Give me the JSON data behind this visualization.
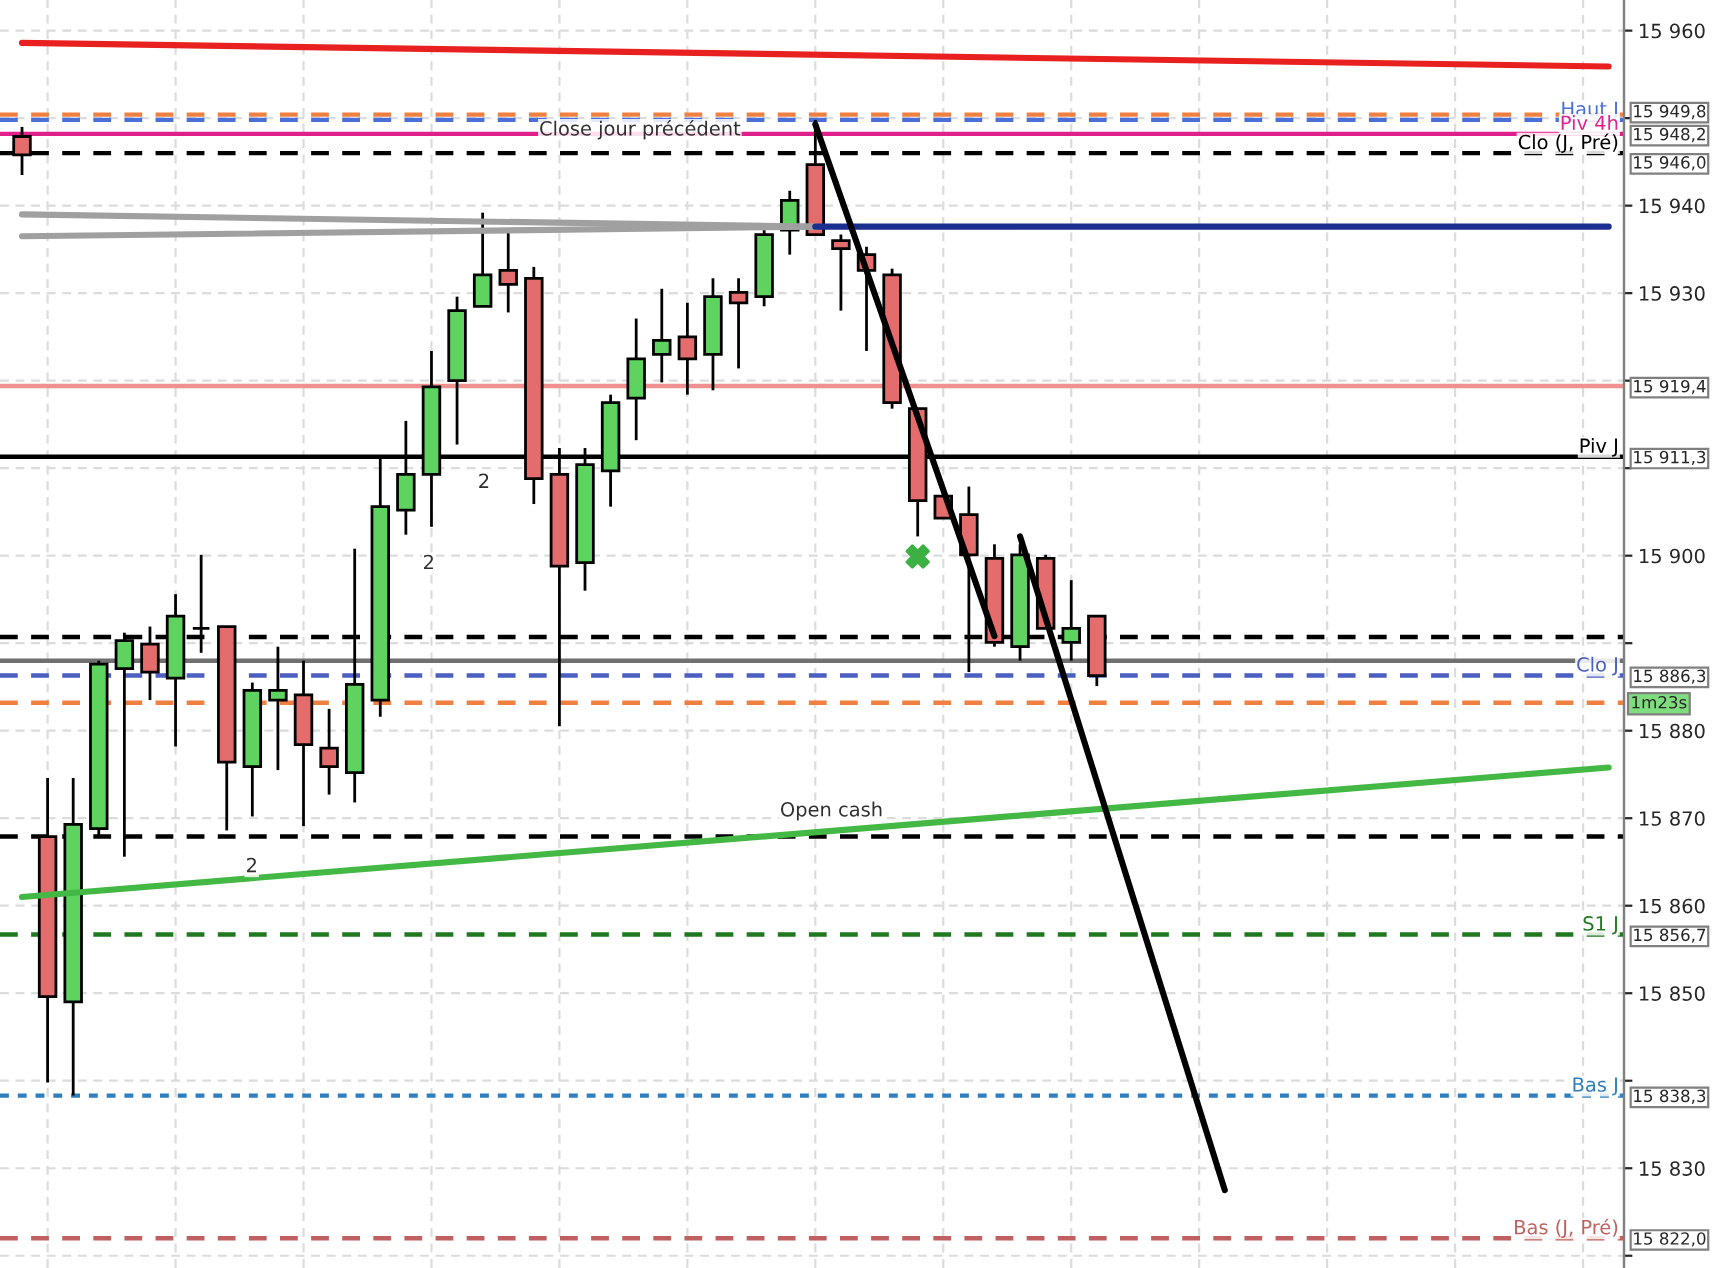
{
  "chart_data": {
    "type": "candlestick",
    "categories": [
      null,
      null,
      null,
      null,
      null,
      null,
      null,
      null,
      null,
      null,
      null,
      null,
      null,
      null,
      null,
      null,
      null,
      null,
      null,
      null,
      null,
      null,
      null,
      null,
      null,
      null,
      null,
      null,
      null,
      null,
      null,
      null,
      null,
      null,
      null,
      null,
      null,
      null,
      null,
      null,
      null,
      null,
      null,
      null,
      null,
      null,
      null,
      null,
      null,
      null,
      null,
      null,
      null,
      null,
      null,
      null,
      null,
      null,
      null,
      null,
      null,
      null,
      null
    ],
    "ohlc": [
      [
        15947.9,
        15949.0,
        15943.5,
        15945.8
      ],
      [
        15867.9,
        15874.6,
        15839.8,
        15849.6
      ],
      [
        15849.0,
        15874.6,
        15838.3,
        15869.3
      ],
      [
        15868.8,
        15888.0,
        15867.9,
        15887.6
      ],
      [
        15887.1,
        15891.2,
        15865.6,
        15890.3
      ],
      [
        15889.9,
        15891.9,
        15883.5,
        15886.7
      ],
      [
        15886.0,
        15895.6,
        15878.2,
        15893.1
      ],
      [
        15891.7,
        15900.1,
        15888.9,
        15891.7
      ],
      [
        15891.9,
        15891.9,
        15868.6,
        15876.4
      ],
      [
        15875.9,
        15885.5,
        15870.2,
        15884.6
      ],
      [
        15883.5,
        15889.6,
        15875.5,
        15884.6
      ],
      [
        15884.1,
        15888.0,
        15869.1,
        15878.4
      ],
      [
        15878.0,
        15882.5,
        15872.7,
        15875.9
      ],
      [
        15875.2,
        15900.8,
        15871.8,
        15885.3
      ],
      [
        15883.5,
        15911.3,
        15881.6,
        15905.6
      ],
      [
        15905.2,
        15915.4,
        15902.4,
        15909.3
      ],
      [
        15909.3,
        15923.4,
        15903.3,
        15919.3
      ],
      [
        15920.0,
        15929.6,
        15912.7,
        15928.0
      ],
      [
        15928.5,
        15939.2,
        15928.5,
        15932.1
      ],
      [
        15932.6,
        15937.2,
        15927.8,
        15931.0
      ],
      [
        15931.7,
        15933.0,
        15905.9,
        15908.8
      ],
      [
        15909.3,
        15912.3,
        15880.5,
        15898.8
      ],
      [
        15899.2,
        15912.3,
        15896.0,
        15910.4
      ],
      [
        15909.7,
        15918.4,
        15905.6,
        15917.5
      ],
      [
        15918.0,
        15927.1,
        15913.2,
        15922.5
      ],
      [
        15923.0,
        15930.5,
        15919.8,
        15924.6
      ],
      [
        15925.0,
        15928.9,
        15918.4,
        15922.5
      ],
      [
        15923.0,
        15931.7,
        15918.9,
        15929.6
      ],
      [
        15930.1,
        15931.7,
        15921.4,
        15928.9
      ],
      [
        15929.6,
        15937.2,
        15928.5,
        15936.7
      ],
      [
        15937.2,
        15941.7,
        15934.4,
        15940.6
      ],
      [
        15944.7,
        15949.8,
        15936.7,
        15936.7
      ],
      [
        15936.0,
        15936.7,
        15928.0,
        15935.1
      ],
      [
        15934.4,
        15935.3,
        15923.4,
        15932.6
      ],
      [
        15932.1,
        15932.8,
        15916.8,
        15917.5
      ],
      [
        15916.8,
        15916.8,
        15902.2,
        15906.3
      ],
      [
        15906.8,
        15907.9,
        15904.3,
        15904.3
      ],
      [
        15904.7,
        15907.9,
        15886.7,
        15900.1
      ],
      [
        15899.7,
        15901.3,
        15889.6,
        15890.1
      ],
      [
        15889.6,
        15901.3,
        15888.0,
        15900.1
      ],
      [
        15899.7,
        15900.1,
        15891.7,
        15891.7
      ],
      [
        15890.1,
        15897.2,
        15888.0,
        15891.7
      ],
      [
        15893.1,
        15893.1,
        15885.1,
        15886.3
      ],
      null,
      null,
      null,
      null,
      null,
      null,
      null,
      null,
      null,
      null,
      null,
      null,
      null,
      null,
      null,
      null,
      null,
      null,
      null,
      null
    ],
    "colors": [
      "#e46c6c",
      "#e46c6c",
      "#5fd35f",
      "#5fd35f",
      "#5fd35f",
      "#e46c6c",
      "#5fd35f",
      "#000000",
      "#e46c6c",
      "#5fd35f",
      "#5fd35f",
      "#e46c6c",
      "#e46c6c",
      "#5fd35f",
      "#5fd35f",
      "#5fd35f",
      "#5fd35f",
      "#5fd35f",
      "#5fd35f",
      "#e46c6c",
      "#e46c6c",
      "#e46c6c",
      "#5fd35f",
      "#5fd35f",
      "#5fd35f",
      "#5fd35f",
      "#e46c6c",
      "#5fd35f",
      "#e46c6c",
      "#5fd35f",
      "#5fd35f",
      "#e46c6c",
      "#e46c6c",
      "#e46c6c",
      "#e46c6c",
      "#e46c6c",
      "#e46c6c",
      "#e46c6c",
      "#e46c6c",
      "#5fd35f",
      "#e46c6c",
      "#5fd35f",
      "#e46c6c",
      null,
      null,
      null,
      null,
      null,
      null,
      null,
      null,
      null,
      null,
      null,
      null,
      null,
      null,
      null,
      null,
      null,
      null,
      null,
      null
    ],
    "series": [
      {
        "type": "line",
        "color": "#e82020",
        "values": [
          15958.6,
          null,
          null,
          null,
          null,
          null,
          null,
          null,
          null,
          null,
          null,
          null,
          null,
          null,
          null,
          null,
          null,
          null,
          null,
          null,
          null,
          null,
          null,
          null,
          null,
          null,
          null,
          null,
          null,
          null,
          null,
          null,
          null,
          null,
          null,
          null,
          null,
          null,
          null,
          null,
          null,
          null,
          null,
          null,
          null,
          null,
          null,
          null,
          null,
          null,
          null,
          null,
          null,
          null,
          null,
          null,
          null,
          null,
          null,
          null,
          null,
          null,
          15955.9
        ]
      },
      {
        "type": "line",
        "color": "#44b844",
        "values": [
          15861.0,
          null,
          null,
          null,
          null,
          null,
          null,
          null,
          null,
          null,
          null,
          null,
          null,
          null,
          null,
          null,
          null,
          null,
          null,
          null,
          null,
          null,
          null,
          null,
          null,
          null,
          null,
          null,
          null,
          null,
          null,
          null,
          null,
          null,
          null,
          null,
          null,
          null,
          null,
          null,
          null,
          null,
          null,
          null,
          null,
          null,
          null,
          null,
          null,
          null,
          null,
          null,
          null,
          null,
          null,
          null,
          null,
          null,
          null,
          null,
          null,
          null,
          15875.8
        ]
      },
      {
        "type": "line",
        "color": "#a0a0a0",
        "values": [
          15939.0,
          null,
          null,
          null,
          null,
          null,
          null,
          null,
          null,
          null,
          null,
          null,
          null,
          null,
          null,
          null,
          null,
          null,
          null,
          null,
          null,
          null,
          null,
          null,
          null,
          null,
          null,
          null,
          null,
          null,
          null,
          15937.6,
          null,
          null,
          null,
          null,
          null,
          null,
          null,
          null,
          null,
          null,
          null,
          null,
          null,
          null,
          null,
          null,
          null,
          null,
          null,
          null,
          null,
          null,
          null,
          null,
          null,
          null,
          null,
          null,
          null,
          null,
          null
        ]
      },
      {
        "type": "line",
        "color": "#a0a0a0",
        "values": [
          15936.5,
          null,
          null,
          null,
          null,
          null,
          null,
          null,
          null,
          null,
          null,
          null,
          null,
          null,
          null,
          null,
          null,
          null,
          null,
          null,
          null,
          null,
          null,
          null,
          null,
          null,
          null,
          null,
          null,
          null,
          null,
          15937.6,
          null,
          null,
          null,
          null,
          null,
          null,
          null,
          null,
          null,
          null,
          null,
          null,
          null,
          null,
          null,
          null,
          null,
          null,
          null,
          null,
          null,
          null,
          null,
          null,
          null,
          null,
          null,
          null,
          null,
          null,
          null
        ]
      },
      {
        "type": "line",
        "color": "#1a2f8f",
        "values": [
          null,
          null,
          null,
          null,
          null,
          null,
          null,
          null,
          null,
          null,
          null,
          null,
          null,
          null,
          null,
          null,
          null,
          null,
          null,
          null,
          null,
          null,
          null,
          null,
          null,
          null,
          null,
          null,
          null,
          null,
          null,
          15937.6,
          null,
          null,
          null,
          null,
          null,
          null,
          null,
          null,
          null,
          null,
          null,
          null,
          null,
          null,
          null,
          null,
          null,
          null,
          null,
          null,
          null,
          null,
          null,
          null,
          null,
          null,
          null,
          null,
          null,
          null,
          15937.6
        ]
      },
      {
        "type": "line",
        "color": "#000000",
        "values": [
          null,
          null,
          null,
          null,
          null,
          null,
          null,
          null,
          null,
          null,
          null,
          null,
          null,
          null,
          null,
          null,
          null,
          null,
          null,
          null,
          null,
          null,
          null,
          null,
          null,
          null,
          null,
          null,
          null,
          null,
          null,
          15949.3,
          null,
          null,
          null,
          null,
          null,
          null,
          15890.8,
          null,
          null,
          null,
          null,
          null,
          null,
          null,
          null,
          null,
          null,
          null,
          null,
          null,
          null,
          null,
          null,
          null,
          null,
          null,
          null,
          null,
          null,
          null,
          null
        ]
      },
      {
        "type": "line",
        "color": "#000000",
        "values": [
          null,
          null,
          null,
          null,
          null,
          null,
          null,
          null,
          null,
          null,
          null,
          null,
          null,
          null,
          null,
          null,
          null,
          null,
          null,
          null,
          null,
          null,
          null,
          null,
          null,
          null,
          null,
          null,
          null,
          null,
          null,
          null,
          null,
          null,
          null,
          null,
          null,
          null,
          null,
          15902.2,
          null,
          null,
          null,
          null,
          null,
          null,
          null,
          15827.5,
          null,
          null,
          null,
          null,
          null,
          null,
          null,
          null,
          null,
          null,
          null,
          null,
          null,
          null,
          null
        ]
      },
      {
        "type": "scatter",
        "marker": "cross",
        "color": "#3cb043",
        "values": [
          null,
          null,
          null,
          null,
          null,
          null,
          null,
          null,
          null,
          null,
          null,
          null,
          null,
          null,
          null,
          null,
          null,
          null,
          null,
          null,
          null,
          null,
          null,
          null,
          null,
          null,
          null,
          null,
          null,
          null,
          null,
          null,
          null,
          null,
          null,
          15899.9,
          null,
          null,
          null,
          null,
          null,
          null,
          null,
          null,
          null,
          null,
          null,
          null,
          null,
          null,
          null,
          null,
          null,
          null,
          null,
          null,
          null,
          null,
          null,
          null,
          null,
          null,
          null
        ]
      }
    ],
    "ref_lines": [
      {
        "axis": "y",
        "value": 15950.4,
        "color": "#f08040",
        "line_style": "dashed"
      },
      {
        "axis": "y",
        "value": 15949.8,
        "label": "Haut J",
        "color": "#4a6fd6",
        "line_style": "dashed"
      },
      {
        "axis": "y",
        "value": 15948.2,
        "label": "Piv 4h",
        "color": "#e0208a",
        "line_style": "solid"
      },
      {
        "axis": "y",
        "value": 15946.0,
        "label": "Clo (J, Pré)",
        "color": "#000000",
        "line_style": "dashed"
      },
      {
        "axis": "y",
        "value": 15919.4,
        "color": "#f09090",
        "line_style": "solid"
      },
      {
        "axis": "y",
        "value": 15911.3,
        "label": "Piv J",
        "color": "#000000",
        "line_style": "solid"
      },
      {
        "axis": "y",
        "value": 15890.7,
        "color": "#000000",
        "line_style": "dashed"
      },
      {
        "axis": "y",
        "value": 15888.0,
        "color": "#707070",
        "line_style": "solid"
      },
      {
        "axis": "y",
        "value": 15886.3,
        "label": "Clo J",
        "color": "#4a5fc0",
        "line_style": "dashed"
      },
      {
        "axis": "y",
        "value": 15883.2,
        "color": "#f08040",
        "line_style": "dashed"
      },
      {
        "axis": "y",
        "value": 15867.9,
        "color": "#000000",
        "line_style": "dashed"
      },
      {
        "axis": "y",
        "value": 15856.7,
        "label": "S1 J",
        "color": "#1f7a1f",
        "line_style": "dashed"
      },
      {
        "axis": "y",
        "value": 15838.3,
        "label": "Bas J",
        "color": "#2f7fbf",
        "line_style": "dotted"
      },
      {
        "axis": "y",
        "value": 15822.0,
        "label": "Bas (J, Pré)",
        "color": "#c06060",
        "line_style": "dashed"
      }
    ],
    "annotations": [
      "Close jour précédent",
      "Open cash",
      "2",
      "2",
      "2",
      "1m23s"
    ],
    "y2lim": [
      15818.6,
      15963.5
    ],
    "y2ticks": [
      {
        "value": 15949.8,
        "label": "15 949,8"
      },
      {
        "value": 15948.2,
        "label": "15 948,2"
      },
      {
        "value": 15946.0,
        "label": "15 946,0"
      },
      {
        "value": 15919.4,
        "label": "15 919,4"
      },
      {
        "value": 15911.3,
        "label": "15 911,3"
      },
      {
        "value": 15886.3,
        "label": "15 886,3"
      },
      {
        "value": 15856.7,
        "label": "15 856,7"
      },
      {
        "value": 15838.3,
        "label": "15 838,3"
      },
      {
        "value": 15822.0,
        "label": "15 822,0"
      }
    ],
    "ylim": [
      15818.6,
      15963.5
    ],
    "yticks": [
      {
        "value": 15960,
        "label": "15 960"
      },
      {
        "value": 15950,
        "label": null
      },
      {
        "value": 15940,
        "label": "15 940"
      },
      {
        "value": 15930,
        "label": "15 930"
      },
      {
        "value": 15920,
        "label": null
      },
      {
        "value": 15910,
        "label": null
      },
      {
        "value": 15900,
        "label": "15 900"
      },
      {
        "value": 15890,
        "label": null
      },
      {
        "value": 15880,
        "label": "15 880"
      },
      {
        "value": 15870,
        "label": "15 870"
      },
      {
        "value": 15860,
        "label": "15 860"
      },
      {
        "value": 15850,
        "label": "15 850"
      },
      {
        "value": 15840,
        "label": null
      },
      {
        "value": 15830,
        "label": "15 830"
      },
      {
        "value": 15820,
        "label": null
      }
    ],
    "tick_labels": "y",
    "grid": true
  }
}
